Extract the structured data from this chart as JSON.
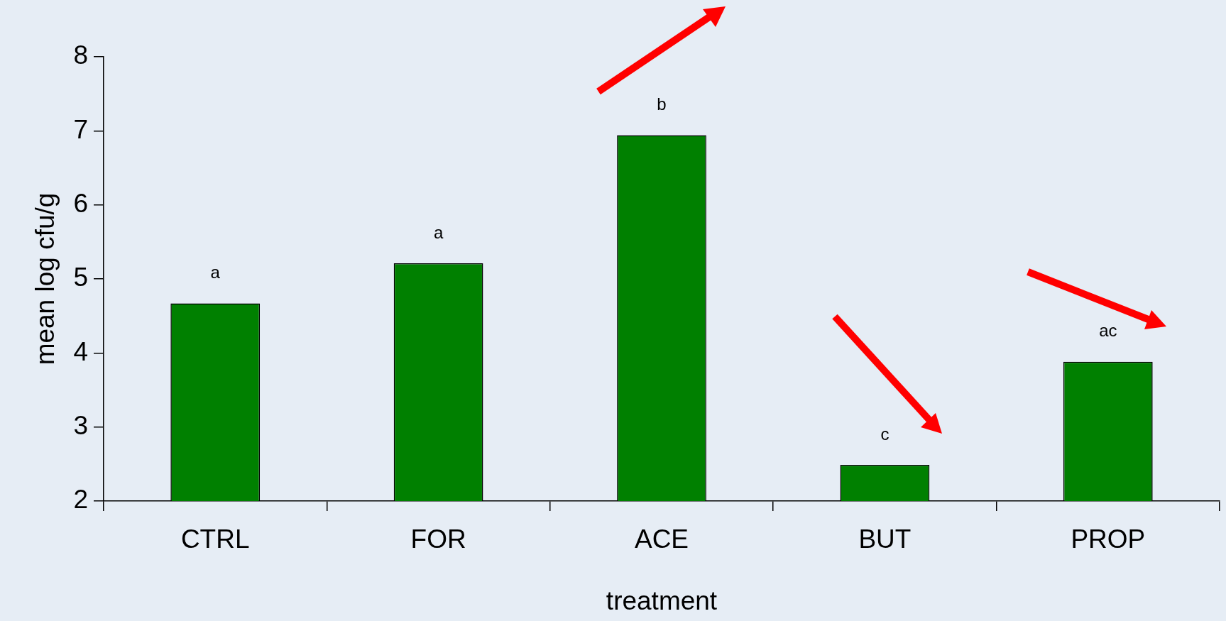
{
  "chart_data": {
    "type": "bar",
    "xlabel": "treatment",
    "ylabel": "mean log cfu/g",
    "categories": [
      "CTRL",
      "FOR",
      "ACE",
      "BUT",
      "PROP"
    ],
    "values": [
      4.67,
      5.21,
      6.94,
      2.49,
      3.88
    ],
    "color": "#008000",
    "ylim": [
      2,
      8
    ],
    "yticks": [
      2,
      3,
      4,
      5,
      6,
      7,
      8
    ],
    "grid": false,
    "legend": false,
    "annotations": [
      "a",
      "a",
      "b",
      "c",
      "ac"
    ]
  }
}
